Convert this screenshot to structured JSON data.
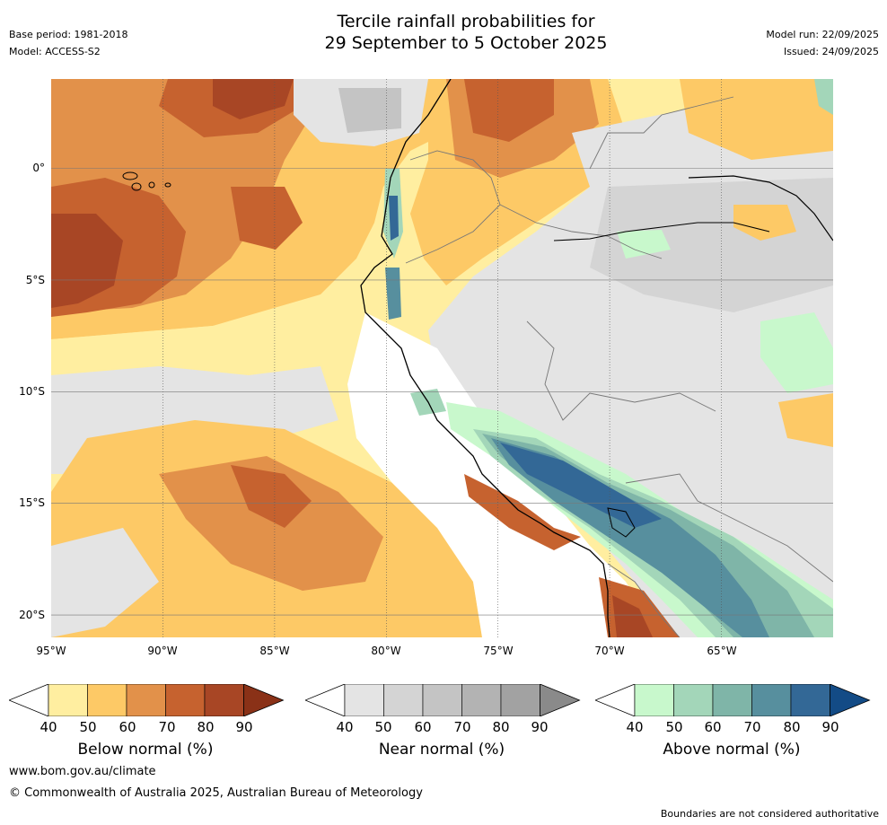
{
  "header": {
    "title_line1": "Tercile rainfall probabilities for",
    "title_line2": "29 September to 5 October 2025",
    "base_period": "Base period: 1981-2018",
    "model": "Model: ACCESS-S2",
    "model_run": "Model run: 22/09/2025",
    "issued": "Issued: 24/09/2025"
  },
  "map": {
    "lat_labels": [
      "0°",
      "5°S",
      "10°S",
      "15°S",
      "20°S"
    ],
    "lon_labels": [
      "95°W",
      "90°W",
      "85°W",
      "80°W",
      "75°W",
      "70°W",
      "65°W"
    ],
    "lat_range_deg": [
      -21,
      4
    ],
    "lon_range_deg": [
      -95,
      -60
    ]
  },
  "legends": [
    {
      "label": "Below normal (%)",
      "ticks": [
        "40",
        "50",
        "60",
        "70",
        "80",
        "90"
      ],
      "colors": [
        "#ffeea0",
        "#fdc966",
        "#e2914a",
        "#c6622f",
        "#a84625",
        "#8a3117"
      ]
    },
    {
      "label": "Near normal (%)",
      "ticks": [
        "40",
        "50",
        "60",
        "70",
        "80",
        "90"
      ],
      "colors": [
        "#e4e4e4",
        "#d4d4d4",
        "#c4c4c4",
        "#b3b3b3",
        "#a2a2a2",
        "#8a8a8a"
      ]
    },
    {
      "label": "Above normal (%)",
      "ticks": [
        "40",
        "50",
        "60",
        "70",
        "80",
        "90"
      ],
      "colors": [
        "#c8f8cc",
        "#a3d6b9",
        "#7fb5a8",
        "#578f9e",
        "#336896",
        "#134b86"
      ]
    }
  ],
  "footer": {
    "website": "www.bom.gov.au/climate",
    "copyright": "© Commonwealth of Australia 2025, Australian Bureau of Meteorology",
    "disclaimer": "Boundaries are not considered authoritative"
  }
}
